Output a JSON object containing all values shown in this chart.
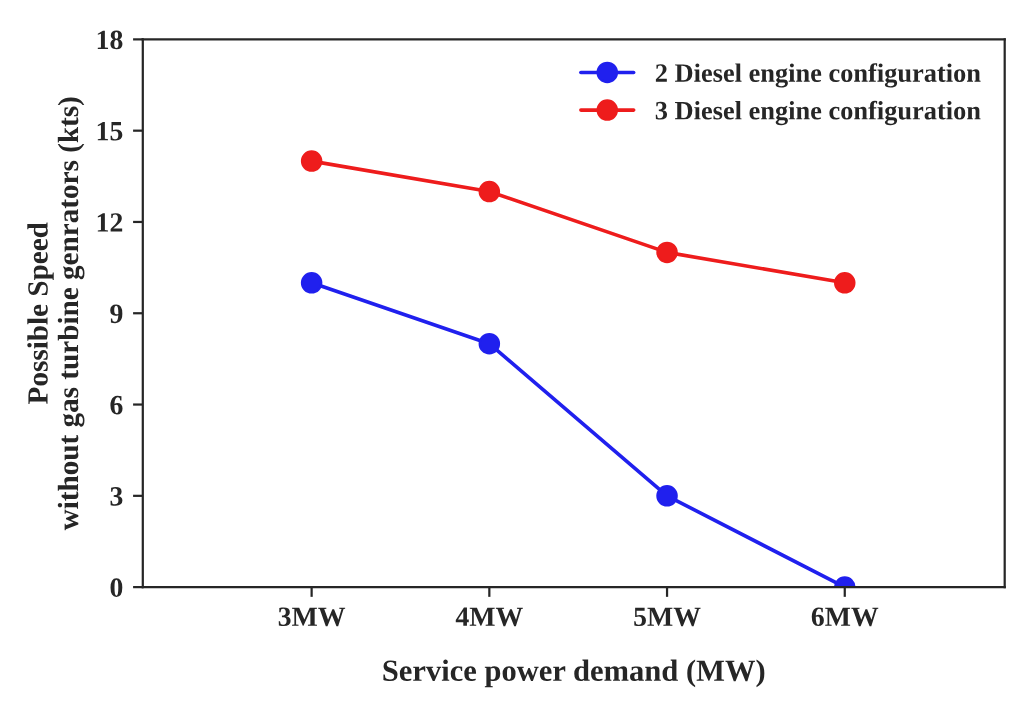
{
  "chart_data": {
    "type": "line",
    "xlabel": "Service power demand (MW)",
    "ylabel": "Possible Speed\nwithout gas turbine genrators (kts)",
    "categories": [
      "3MW",
      "4MW",
      "5MW",
      "6MW"
    ],
    "series": [
      {
        "name": "2 Diesel engine configuration",
        "color": "#2020ee",
        "values": [
          10,
          8,
          3,
          0
        ]
      },
      {
        "name": "3 Diesel engine configuration",
        "color": "#ee1c1c",
        "values": [
          14,
          13,
          11,
          10
        ]
      }
    ],
    "ylim": [
      0,
      18
    ],
    "yticks": [
      0,
      3,
      6,
      9,
      12,
      15,
      18
    ],
    "grid": false,
    "legend": "top right",
    "marker": "circle",
    "line_style": "solid"
  }
}
